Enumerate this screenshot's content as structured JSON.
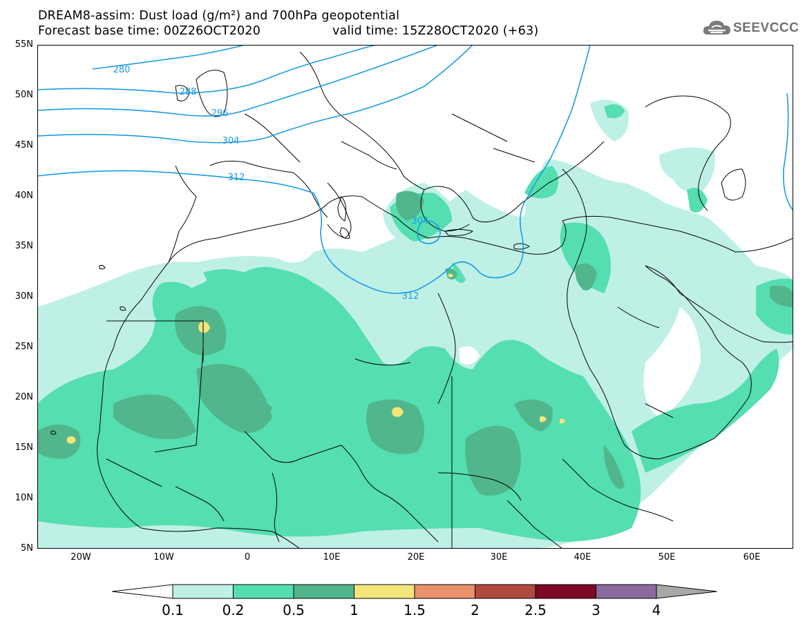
{
  "header": {
    "line1": "DREAM8-assim: Dust load (g/m²) and 700hPa geopotential",
    "base_time": "Forecast base time: 00Z26OCT2020",
    "valid_time": "valid time: 15Z28OCT2020 (+63)"
  },
  "logo": {
    "text": "SEEVCCC",
    "icon": "cloud-logo-icon"
  },
  "axes": {
    "lat_labels": [
      "55N",
      "50N",
      "45N",
      "40N",
      "35N",
      "30N",
      "25N",
      "20N",
      "15N",
      "10N",
      "5N"
    ],
    "lon_labels": [
      "20W",
      "10W",
      "0",
      "10E",
      "20E",
      "30E",
      "40E",
      "50E",
      "60E"
    ]
  },
  "contours": {
    "variable": "700hPa geopotential",
    "labels": [
      "280",
      "288",
      "296",
      "304",
      "312",
      "304",
      "312"
    ]
  },
  "colorbar": {
    "tick_labels": [
      "0.1",
      "0.2",
      "0.5",
      "1",
      "1.5",
      "2",
      "2.5",
      "3",
      "4"
    ],
    "colors": [
      "#bff0e6",
      "#55deb0",
      "#52b68c",
      "#f2e57a",
      "#e8916b",
      "#b04a3e",
      "#7c0a24",
      "#8a6a9c",
      "#a8a8a8"
    ],
    "under_color": "#ffffff"
  },
  "legend_colors": {
    "contour_line": "#1a9be6",
    "coastline": "#000000"
  }
}
